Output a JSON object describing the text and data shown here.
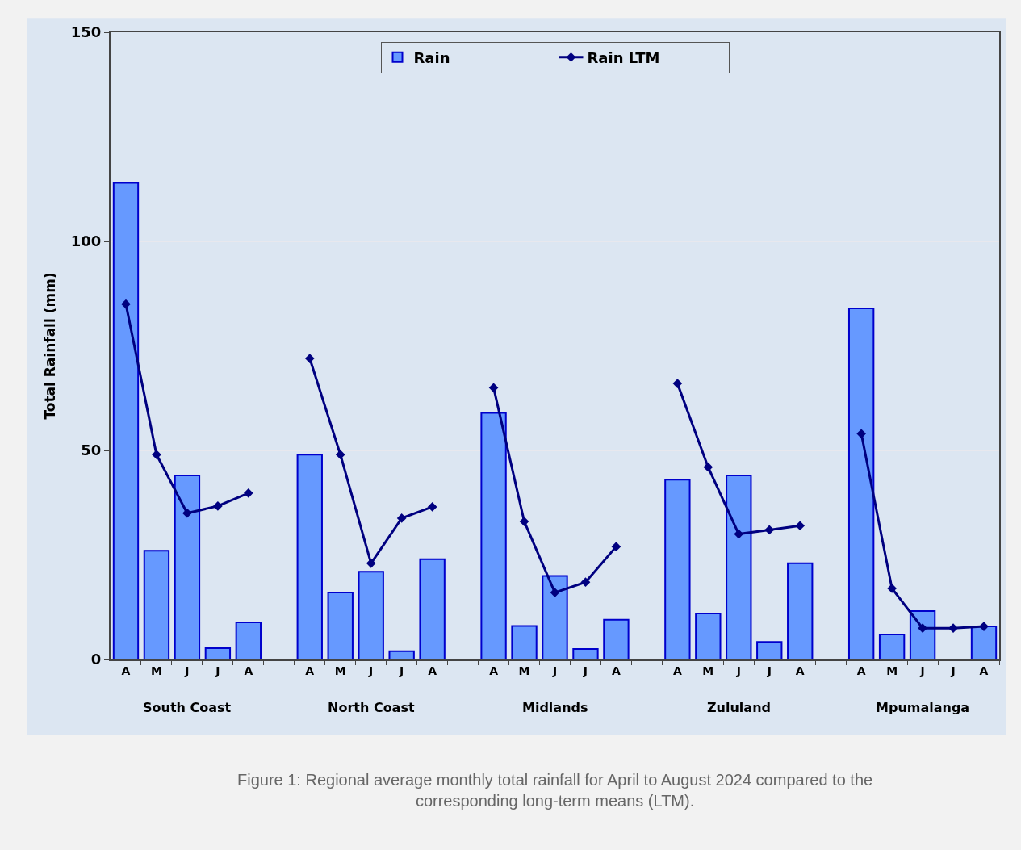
{
  "chart_data": {
    "type": "bar",
    "ylabel": "Total Rainfall (mm)",
    "categories": [
      "A",
      "M",
      "J",
      "J",
      "A",
      null,
      "A",
      "M",
      "J",
      "J",
      "A",
      null,
      "A",
      "M",
      "J",
      "J",
      "A",
      null,
      "A",
      "M",
      "J",
      "J",
      "A",
      null,
      "A",
      "M",
      "J",
      "J",
      "A"
    ],
    "series": [
      {
        "name": "Rain",
        "color": "#6699ff",
        "values": [
          114,
          26,
          44,
          2.7,
          8.9,
          null,
          49,
          16,
          21,
          2,
          24,
          null,
          59,
          8,
          20,
          2.5,
          9.5,
          null,
          43,
          11,
          44,
          4.2,
          23,
          null,
          84,
          6,
          11.6,
          null,
          7.9
        ]
      },
      {
        "name": "Rain LTM",
        "type": "line",
        "color": "#000080",
        "values": [
          85,
          49,
          35,
          36.7,
          39.8,
          null,
          72,
          49,
          23,
          33.8,
          36.5,
          null,
          65,
          33,
          16,
          18.5,
          27,
          null,
          66,
          46,
          30,
          31,
          32,
          null,
          54,
          17,
          7.5,
          7.5,
          7.9
        ]
      }
    ],
    "ylim": [
      0,
      150
    ],
    "yticks": [
      0,
      50,
      100,
      150
    ],
    "grid": "y",
    "legend": "top",
    "marker": "diamond",
    "line_style": "solid",
    "annotations": [
      "South Coast",
      "North Coast",
      "Midlands",
      "Zululand",
      "Mpumalanga",
      "Figure 1: Regional average monthly total rainfall for April to August 2024 compared to the corresponding long-term means (LTM)."
    ]
  }
}
